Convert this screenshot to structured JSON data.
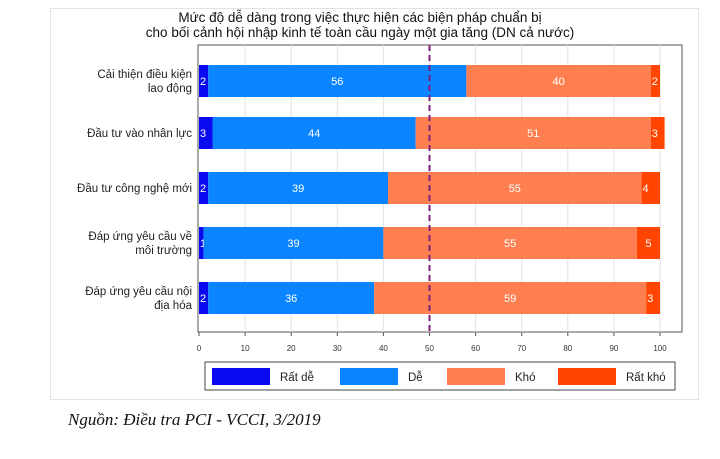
{
  "chart_data": {
    "type": "bar",
    "orientation": "horizontal-stacked",
    "title": "Mức độ dễ dàng trong việc thực hiện các biện pháp chuẩn bị cho bối cảnh hội nhập kinh tế toàn cầu ngày một gia tăng (DN cả nước)",
    "title_lines": [
      "Mức độ dễ dàng trong việc thực hiện các biện pháp chuẩn bị",
      "cho bối cảnh hội nhập kinh tế toàn cầu ngày một gia tăng (DN cả nước)"
    ],
    "categories": [
      [
        "Cải thiện điều kiện",
        "lao động"
      ],
      [
        "Đầu tư vào nhân lực"
      ],
      [
        "Đầu tư công nghệ mới"
      ],
      [
        "Đáp ứng yêu cầu về",
        "môi trường"
      ],
      [
        "Đáp ứng yêu cầu nội",
        "địa hóa"
      ]
    ],
    "series": [
      {
        "name": "Rất dễ",
        "color": "#0a0af0",
        "values": [
          2,
          3,
          2,
          1,
          2
        ]
      },
      {
        "name": "Dễ",
        "color": "#0a84ff",
        "values": [
          56,
          44,
          39,
          39,
          36
        ]
      },
      {
        "name": "Khó",
        "color": "#ff7f50",
        "values": [
          40,
          51,
          55,
          55,
          59
        ]
      },
      {
        "name": "Rất khó",
        "color": "#ff4500",
        "values": [
          2,
          3,
          4,
          5,
          3
        ]
      }
    ],
    "xlim": [
      0,
      103
    ],
    "xticks": [
      0,
      10,
      20,
      30,
      40,
      50,
      60,
      70,
      80,
      90,
      100
    ],
    "reference_line": {
      "x": 50,
      "style": "dashed",
      "color": "#7b1f7b"
    },
    "grid": true,
    "legend_placement": "bottom"
  },
  "source": "Nguồn: Điều tra PCI - VCCI, 3/2019"
}
